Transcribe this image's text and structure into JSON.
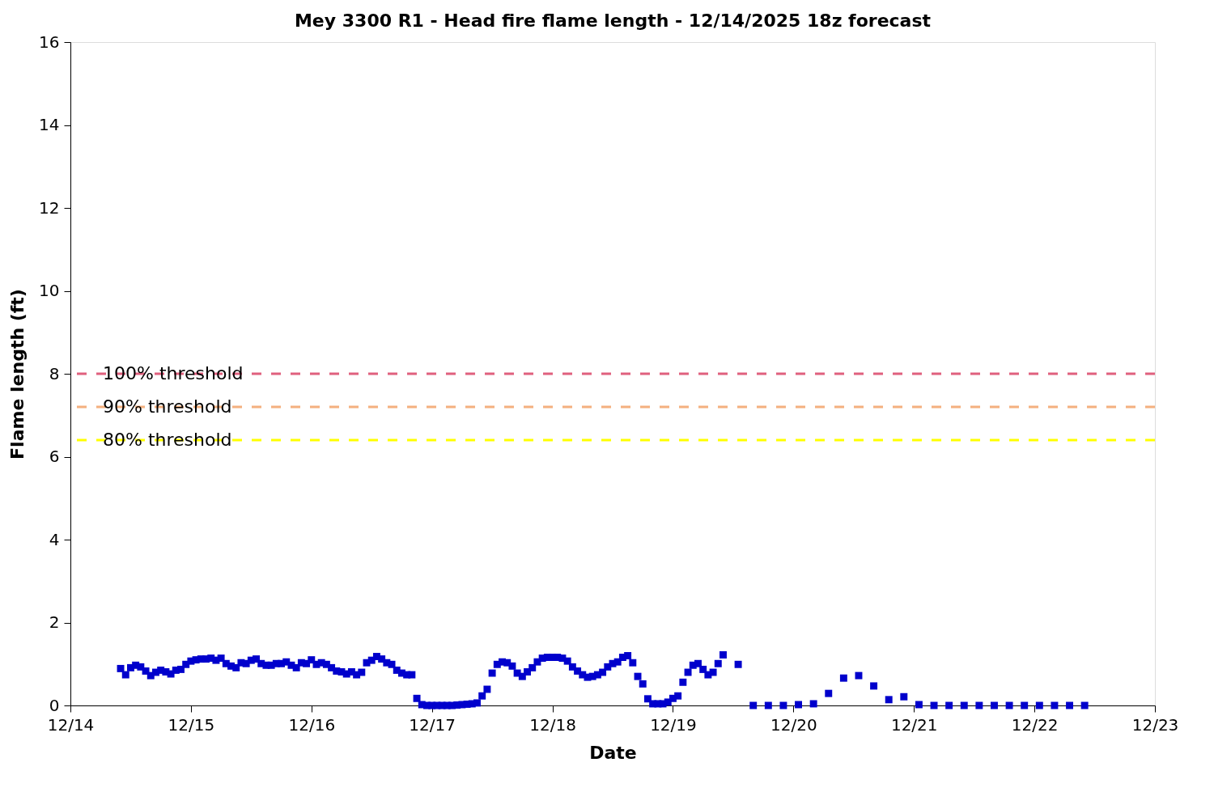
{
  "chart_data": {
    "type": "scatter",
    "title": "Mey 3300 R1 - Head fire flame length - 12/14/2025 18z forecast",
    "xlabel": "Date",
    "ylabel": "Flame length (ft)",
    "x": [
      "2025-12-14T10:00",
      "2025-12-14T11:00",
      "2025-12-14T12:00",
      "2025-12-14T13:00",
      "2025-12-14T14:00",
      "2025-12-14T15:00",
      "2025-12-14T16:00",
      "2025-12-14T17:00",
      "2025-12-14T18:00",
      "2025-12-14T19:00",
      "2025-12-14T20:00",
      "2025-12-14T21:00",
      "2025-12-14T22:00",
      "2025-12-14T23:00",
      "2025-12-15T00:00",
      "2025-12-15T01:00",
      "2025-12-15T02:00",
      "2025-12-15T03:00",
      "2025-12-15T04:00",
      "2025-12-15T05:00",
      "2025-12-15T06:00",
      "2025-12-15T07:00",
      "2025-12-15T08:00",
      "2025-12-15T09:00",
      "2025-12-15T10:00",
      "2025-12-15T11:00",
      "2025-12-15T12:00",
      "2025-12-15T13:00",
      "2025-12-15T14:00",
      "2025-12-15T15:00",
      "2025-12-15T16:00",
      "2025-12-15T17:00",
      "2025-12-15T18:00",
      "2025-12-15T19:00",
      "2025-12-15T20:00",
      "2025-12-15T21:00",
      "2025-12-15T22:00",
      "2025-12-15T23:00",
      "2025-12-16T00:00",
      "2025-12-16T01:00",
      "2025-12-16T02:00",
      "2025-12-16T03:00",
      "2025-12-16T04:00",
      "2025-12-16T05:00",
      "2025-12-16T06:00",
      "2025-12-16T07:00",
      "2025-12-16T08:00",
      "2025-12-16T09:00",
      "2025-12-16T10:00",
      "2025-12-16T11:00",
      "2025-12-16T12:00",
      "2025-12-16T13:00",
      "2025-12-16T14:00",
      "2025-12-16T15:00",
      "2025-12-16T16:00",
      "2025-12-16T17:00",
      "2025-12-16T18:00",
      "2025-12-16T19:00",
      "2025-12-16T20:00",
      "2025-12-16T21:00",
      "2025-12-16T22:00",
      "2025-12-16T23:00",
      "2025-12-17T00:00",
      "2025-12-17T01:00",
      "2025-12-17T02:00",
      "2025-12-17T03:00",
      "2025-12-17T04:00",
      "2025-12-17T05:00",
      "2025-12-17T06:00",
      "2025-12-17T07:00",
      "2025-12-17T08:00",
      "2025-12-17T09:00",
      "2025-12-17T10:00",
      "2025-12-17T11:00",
      "2025-12-17T12:00",
      "2025-12-17T13:00",
      "2025-12-17T14:00",
      "2025-12-17T15:00",
      "2025-12-17T16:00",
      "2025-12-17T17:00",
      "2025-12-17T18:00",
      "2025-12-17T19:00",
      "2025-12-17T20:00",
      "2025-12-17T21:00",
      "2025-12-17T22:00",
      "2025-12-17T23:00",
      "2025-12-18T00:00",
      "2025-12-18T01:00",
      "2025-12-18T02:00",
      "2025-12-18T03:00",
      "2025-12-18T04:00",
      "2025-12-18T05:00",
      "2025-12-18T06:00",
      "2025-12-18T07:00",
      "2025-12-18T08:00",
      "2025-12-18T09:00",
      "2025-12-18T10:00",
      "2025-12-18T11:00",
      "2025-12-18T12:00",
      "2025-12-18T13:00",
      "2025-12-18T14:00",
      "2025-12-18T15:00",
      "2025-12-18T16:00",
      "2025-12-18T17:00",
      "2025-12-18T18:00",
      "2025-12-18T19:00",
      "2025-12-18T20:00",
      "2025-12-18T21:00",
      "2025-12-18T22:00",
      "2025-12-18T23:00",
      "2025-12-19T00:00",
      "2025-12-19T01:00",
      "2025-12-19T02:00",
      "2025-12-19T03:00",
      "2025-12-19T04:00",
      "2025-12-19T05:00",
      "2025-12-19T06:00",
      "2025-12-19T07:00",
      "2025-12-19T08:00",
      "2025-12-19T09:00",
      "2025-12-19T10:00",
      "2025-12-19T13:00",
      "2025-12-19T16:00",
      "2025-12-19T19:00",
      "2025-12-19T22:00",
      "2025-12-20T01:00",
      "2025-12-20T04:00",
      "2025-12-20T07:00",
      "2025-12-20T10:00",
      "2025-12-20T13:00",
      "2025-12-20T16:00",
      "2025-12-20T19:00",
      "2025-12-20T22:00",
      "2025-12-21T01:00",
      "2025-12-21T04:00",
      "2025-12-21T07:00",
      "2025-12-21T10:00",
      "2025-12-21T13:00",
      "2025-12-21T16:00",
      "2025-12-21T19:00",
      "2025-12-21T22:00",
      "2025-12-22T01:00",
      "2025-12-22T04:00",
      "2025-12-22T07:00",
      "2025-12-22T10:00"
    ],
    "series": [
      {
        "color": "#0000cc",
        "values": [
          0.89,
          0.74,
          0.91,
          0.97,
          0.93,
          0.83,
          0.72,
          0.8,
          0.85,
          0.81,
          0.76,
          0.85,
          0.87,
          0.99,
          1.07,
          1.1,
          1.12,
          1.12,
          1.14,
          1.09,
          1.14,
          1.01,
          0.95,
          0.91,
          1.03,
          1.01,
          1.09,
          1.12,
          1.01,
          0.97,
          0.97,
          1.01,
          1.01,
          1.05,
          0.97,
          0.91,
          1.03,
          1.01,
          1.1,
          0.99,
          1.03,
          0.99,
          0.91,
          0.83,
          0.81,
          0.76,
          0.81,
          0.74,
          0.8,
          1.03,
          1.09,
          1.18,
          1.12,
          1.03,
          0.99,
          0.85,
          0.78,
          0.74,
          0.74,
          0.17,
          0.02,
          0,
          0,
          0,
          0,
          0,
          0,
          0.01,
          0.02,
          0.03,
          0.04,
          0.06,
          0.23,
          0.39,
          0.78,
          0.99,
          1.05,
          1.03,
          0.95,
          0.78,
          0.7,
          0.81,
          0.91,
          1.05,
          1.14,
          1.16,
          1.16,
          1.16,
          1.14,
          1.07,
          0.93,
          0.83,
          0.74,
          0.68,
          0.7,
          0.74,
          0.8,
          0.93,
          1.01,
          1.05,
          1.16,
          1.2,
          1.03,
          0.7,
          0.52,
          0.16,
          0.04,
          0.04,
          0.04,
          0.08,
          0.17,
          0.23,
          0.56,
          0.8,
          0.97,
          1.01,
          0.87,
          0.74,
          0.8,
          1.01,
          1.22,
          0.99,
          0,
          0,
          0,
          0.02,
          0.04,
          0.29,
          0.66,
          0.72,
          0.47,
          0.14,
          0.21,
          0.02,
          0,
          0,
          0,
          0,
          0,
          0,
          0,
          0,
          0,
          0,
          0
        ]
      }
    ],
    "xlim": [
      "2025-12-14T00:00",
      "2025-12-23T00:00"
    ],
    "xticks": [
      {
        "value": "2025-12-14T00:00",
        "label": "12/14"
      },
      {
        "value": "2025-12-15T00:00",
        "label": "12/15"
      },
      {
        "value": "2025-12-16T00:00",
        "label": "12/16"
      },
      {
        "value": "2025-12-17T00:00",
        "label": "12/17"
      },
      {
        "value": "2025-12-18T00:00",
        "label": "12/18"
      },
      {
        "value": "2025-12-19T00:00",
        "label": "12/19"
      },
      {
        "value": "2025-12-20T00:00",
        "label": "12/20"
      },
      {
        "value": "2025-12-21T00:00",
        "label": "12/21"
      },
      {
        "value": "2025-12-22T00:00",
        "label": "12/22"
      },
      {
        "value": "2025-12-23T00:00",
        "label": "12/23"
      }
    ],
    "ylim": [
      0,
      16
    ],
    "yticks": [
      0,
      2,
      4,
      6,
      8,
      10,
      12,
      14,
      16
    ],
    "ref_lines": [
      {
        "axis": "y",
        "value": 8,
        "label": "100% threshold",
        "color": "#e0607e",
        "line_style": "dashed"
      },
      {
        "axis": "y",
        "value": 7.2,
        "label": "90% threshold",
        "color": "#f4b07f",
        "line_style": "dashed"
      },
      {
        "axis": "y",
        "value": 6.4,
        "label": "80% threshold",
        "color": "#ffff00",
        "line_style": "dashed"
      }
    ],
    "marker": "square",
    "grid": false
  }
}
